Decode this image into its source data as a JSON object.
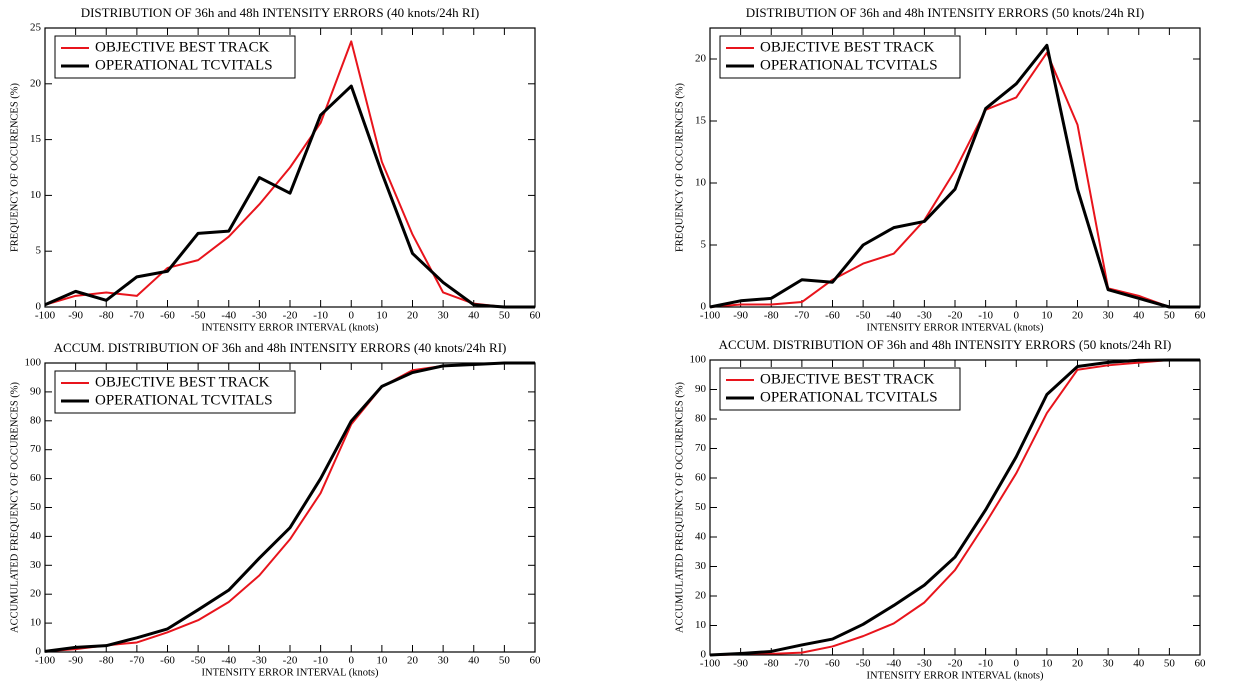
{
  "chart_data": [
    {
      "type": "line",
      "title": "DISTRIBUTION OF 36h and 48h INTENSITY ERRORS (40 knots/24h RI)",
      "x_label": "INTENSITY ERROR INTERVAL (knots)",
      "y_label": "FREQUENCY OF OCCURENCES (%)",
      "x": [
        -100,
        -90,
        -80,
        -70,
        -60,
        -50,
        -40,
        -30,
        -20,
        -10,
        0,
        10,
        20,
        30,
        40,
        50,
        60
      ],
      "series": [
        {
          "name": "OBJECTIVE BEST TRACK",
          "color": "#e8141c",
          "values": [
            0.2,
            1.0,
            1.3,
            1.0,
            3.5,
            4.2,
            6.3,
            9.2,
            12.5,
            16.5,
            23.8,
            13.0,
            6.5,
            1.3,
            0.3,
            0,
            0
          ]
        },
        {
          "name": "OPERATIONAL TCVITALS",
          "color": "#000000",
          "values": [
            0.2,
            1.4,
            0.6,
            2.7,
            3.2,
            6.6,
            6.8,
            11.6,
            10.2,
            17.2,
            19.8,
            12.0,
            4.8,
            2.2,
            0.2,
            0,
            0
          ]
        }
      ],
      "xlim": [
        -100,
        60
      ],
      "ylim": [
        0,
        25
      ],
      "xticks": [
        -100,
        -90,
        -80,
        -70,
        -60,
        -50,
        -40,
        -30,
        -20,
        -10,
        0,
        10,
        20,
        30,
        40,
        50,
        60
      ],
      "yticks": [
        0,
        5,
        10,
        15,
        20,
        25
      ],
      "legend": "upper left"
    },
    {
      "type": "line",
      "title": "DISTRIBUTION OF 36h and 48h INTENSITY ERRORS (50 knots/24h RI)",
      "x_label": "INTENSITY ERROR INTERVAL (knots)",
      "y_label": "FREQUENCY OF OCCURENCES (%)",
      "x": [
        -100,
        -90,
        -80,
        -70,
        -60,
        -50,
        -40,
        -30,
        -20,
        -10,
        0,
        10,
        20,
        30,
        40,
        50,
        60
      ],
      "series": [
        {
          "name": "OBJECTIVE BEST TRACK",
          "color": "#e8141c",
          "values": [
            0,
            0.2,
            0.2,
            0.4,
            2.2,
            3.5,
            4.3,
            7.0,
            11.0,
            15.9,
            16.9,
            20.5,
            14.7,
            1.5,
            0.9,
            0,
            0
          ]
        },
        {
          "name": "OPERATIONAL TCVITALS",
          "color": "#000000",
          "values": [
            0,
            0.5,
            0.7,
            2.2,
            2.0,
            5.0,
            6.4,
            6.9,
            9.5,
            16.0,
            18.0,
            21.1,
            9.5,
            1.4,
            0.7,
            0,
            0
          ]
        }
      ],
      "xlim": [
        -100,
        60
      ],
      "ylim": [
        0,
        22.5
      ],
      "xticks": [
        -100,
        -90,
        -80,
        -70,
        -60,
        -50,
        -40,
        -30,
        -20,
        -10,
        0,
        10,
        20,
        30,
        40,
        50,
        60
      ],
      "yticks": [
        0,
        5,
        10,
        15,
        20
      ],
      "legend": "upper left"
    },
    {
      "type": "line",
      "title": "ACCUM. DISTRIBUTION OF 36h and 48h INTENSITY ERRORS (40 knots/24h RI)",
      "x_label": "INTENSITY ERROR INTERVAL (knots)",
      "y_label": "ACCUMULATED FREQUENCY OF OCCURENCES (%)",
      "x": [
        -100,
        -90,
        -80,
        -70,
        -60,
        -50,
        -40,
        -30,
        -20,
        -10,
        0,
        10,
        20,
        30,
        40,
        50,
        60
      ],
      "series": [
        {
          "name": "OBJECTIVE BEST TRACK",
          "color": "#e8141c",
          "values": [
            0.2,
            1,
            2.3,
            3.3,
            6.8,
            11,
            17.3,
            26.5,
            39,
            55,
            78.8,
            91.8,
            97.5,
            99,
            99.5,
            100,
            100
          ]
        },
        {
          "name": "OPERATIONAL TCVITALS",
          "color": "#000000",
          "values": [
            0.2,
            1.6,
            2.2,
            4.9,
            8,
            14.6,
            21.4,
            32.5,
            43,
            60,
            79.9,
            91.9,
            96.7,
            99,
            99.5,
            100,
            100
          ]
        }
      ],
      "xlim": [
        -100,
        60
      ],
      "ylim": [
        0,
        100
      ],
      "xticks": [
        -100,
        -90,
        -80,
        -70,
        -60,
        -50,
        -40,
        -30,
        -20,
        -10,
        0,
        10,
        20,
        30,
        40,
        50,
        60
      ],
      "yticks": [
        0,
        10,
        20,
        30,
        40,
        50,
        60,
        70,
        80,
        90,
        100
      ],
      "legend": "upper left"
    },
    {
      "type": "line",
      "title": "ACCUM. DISTRIBUTION OF 36h and 48h INTENSITY ERRORS (50 knots/24h RI)",
      "x_label": "INTENSITY ERROR INTERVAL (knots)",
      "y_label": "ACCUMULATED FREQUENCY OF OCCURENCES (%)",
      "x": [
        -100,
        -90,
        -80,
        -70,
        -60,
        -50,
        -40,
        -30,
        -20,
        -10,
        0,
        10,
        20,
        30,
        40,
        50,
        60
      ],
      "series": [
        {
          "name": "OBJECTIVE BEST TRACK",
          "color": "#e8141c",
          "values": [
            0,
            0.2,
            0.4,
            0.8,
            2.9,
            6.4,
            10.7,
            17.8,
            28.8,
            44.7,
            61.6,
            82,
            96.7,
            98.2,
            99.1,
            100,
            100
          ]
        },
        {
          "name": "OPERATIONAL TCVITALS",
          "color": "#000000",
          "values": [
            0,
            0.5,
            1.2,
            3.4,
            5.4,
            10.4,
            16.8,
            23.7,
            33.2,
            49.2,
            67.2,
            88.3,
            97.8,
            99.2,
            99.9,
            100,
            100
          ]
        }
      ],
      "xlim": [
        -100,
        60
      ],
      "ylim": [
        0,
        100
      ],
      "xticks": [
        -100,
        -90,
        -80,
        -70,
        -60,
        -50,
        -40,
        -30,
        -20,
        -10,
        0,
        10,
        20,
        30,
        40,
        50,
        60
      ],
      "yticks": [
        0,
        10,
        20,
        30,
        40,
        50,
        60,
        70,
        80,
        90,
        100
      ],
      "legend": "upper left"
    }
  ]
}
